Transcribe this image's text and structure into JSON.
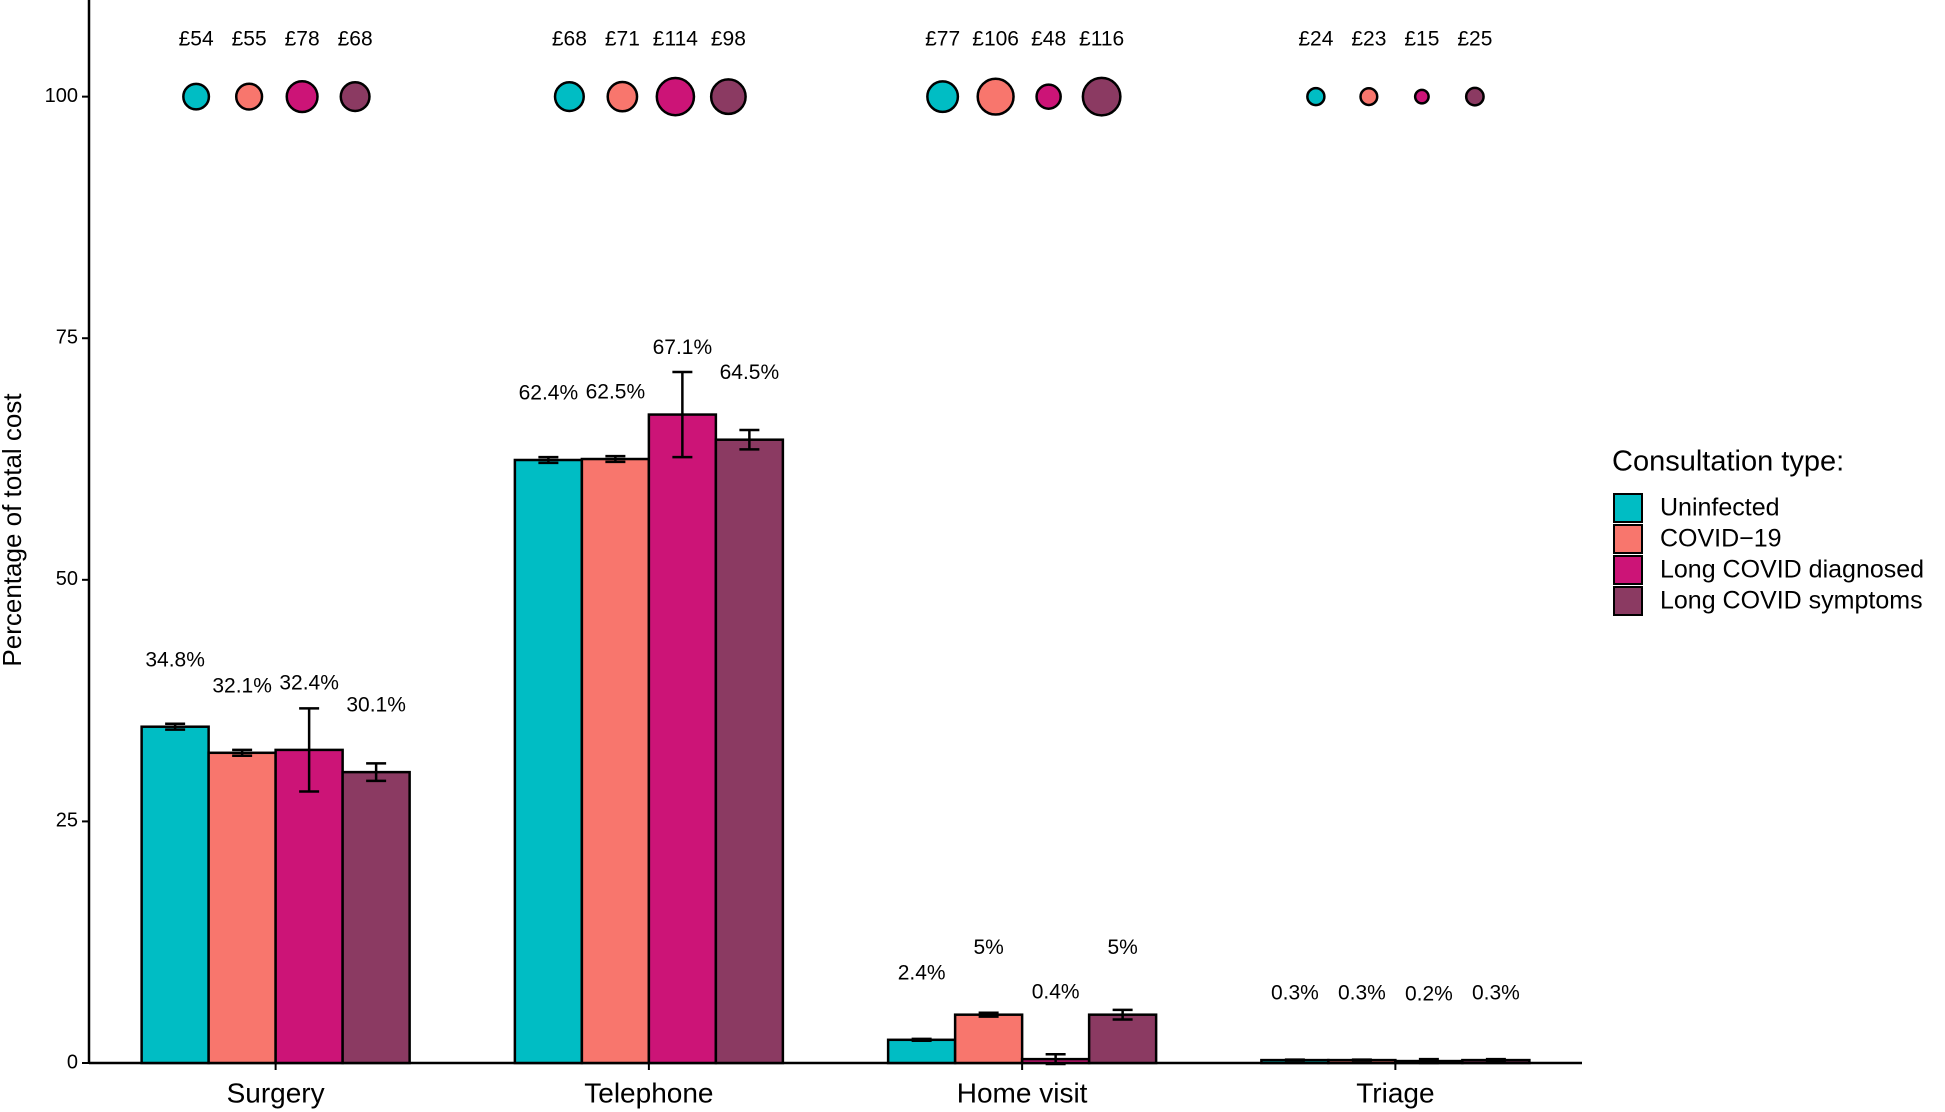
{
  "chart_data": {
    "type": "bar",
    "y_label": "Percentage of total cost",
    "categories": [
      "Surgery",
      "Telephone",
      "Home visit",
      "Triage"
    ],
    "ylim": [
      0,
      110
    ],
    "yticks": [
      0,
      25,
      50,
      75,
      100
    ],
    "legend_title": "Consultation type:",
    "legend_position": "right",
    "cost_y": 100,
    "series": [
      {
        "name": "Uninfected",
        "color": "#00BDC4",
        "values": [
          34.8,
          62.4,
          2.4,
          0.3
        ],
        "errors": [
          0.3,
          0.3,
          0.1,
          0.05
        ],
        "value_labels": [
          "34.8%",
          "62.4%",
          "2.4%",
          "0.3%"
        ],
        "costs": [
          54,
          68,
          77,
          24
        ],
        "cost_labels": [
          "£54",
          "£68",
          "£77",
          "£24"
        ]
      },
      {
        "name": "COVID−19",
        "color": "#F8766D",
        "values": [
          32.1,
          62.5,
          5,
          0.3
        ],
        "errors": [
          0.3,
          0.3,
          0.2,
          0.05
        ],
        "value_labels": [
          "32.1%",
          "62.5%",
          "5%",
          "0.3%"
        ],
        "costs": [
          55,
          71,
          106,
          23
        ],
        "cost_labels": [
          "£55",
          "£71",
          "£106",
          "£23"
        ]
      },
      {
        "name": "Long COVID diagnosed",
        "color": "#CC1477",
        "values": [
          32.4,
          67.1,
          0.4,
          0.2
        ],
        "errors": [
          4.3,
          4.4,
          0.5,
          0.2
        ],
        "value_labels": [
          "32.4%",
          "67.1%",
          "0.4%",
          "0.2%"
        ],
        "costs": [
          78,
          114,
          48,
          15
        ],
        "cost_labels": [
          "£78",
          "£114",
          "£48",
          "£15"
        ]
      },
      {
        "name": "Long COVID symptoms",
        "color": "#8B3A62",
        "values": [
          30.1,
          64.5,
          5,
          0.3
        ],
        "errors": [
          0.9,
          1.0,
          0.5,
          0.1
        ],
        "value_labels": [
          "30.1%",
          "64.5%",
          "5%",
          "0.3%"
        ],
        "costs": [
          68,
          98,
          116,
          25
        ],
        "cost_labels": [
          "£68",
          "£98",
          "£116",
          "£25"
        ]
      }
    ]
  }
}
